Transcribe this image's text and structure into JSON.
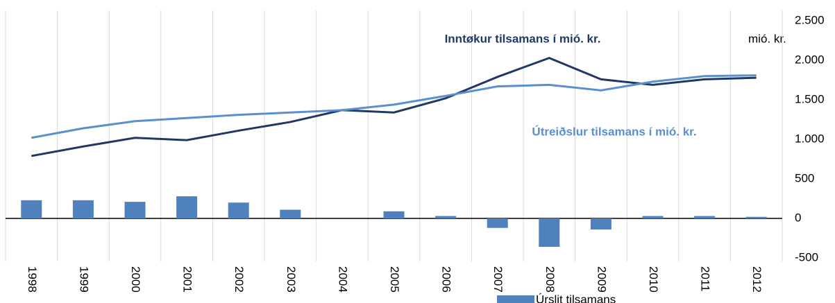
{
  "chart_data": {
    "type": "combo",
    "y_label": "mió. kr.",
    "categories": [
      "1998",
      "1999",
      "2000",
      "2001",
      "2002",
      "2003",
      "2004",
      "2005",
      "2006",
      "2007",
      "2008",
      "2009",
      "2010",
      "2011",
      "2012"
    ],
    "series": [
      {
        "name": "Úrslit tilsamans",
        "type": "bar",
        "color": "#4f81bd",
        "values": [
          230,
          230,
          210,
          280,
          200,
          110,
          0,
          90,
          30,
          -120,
          -360,
          -140,
          30,
          30,
          20
        ]
      },
      {
        "name": "Inntøkur tilsamans í mió. kr.",
        "type": "line",
        "color": "#1f3864",
        "values": [
          790,
          910,
          1020,
          990,
          1110,
          1220,
          1370,
          1340,
          1520,
          1790,
          2030,
          1760,
          1690,
          1760,
          1780
        ]
      },
      {
        "name": "Útreiðslur tilsamans í mió. kr.",
        "type": "line",
        "color": "#5b8fd0",
        "values": [
          1020,
          1140,
          1230,
          1270,
          1310,
          1340,
          1370,
          1440,
          1550,
          1670,
          1690,
          1620,
          1730,
          1800,
          1810
        ]
      }
    ],
    "ylim": [
      -500,
      2500
    ],
    "yticks": [
      -500,
      0,
      500,
      {
        "value": 1000,
        "label": "1.000"
      },
      {
        "value": 1500,
        "label": "1.500"
      },
      {
        "value": 2000,
        "label": "2.000"
      },
      {
        "value": 2500,
        "label": "2.500"
      }
    ],
    "grid": true
  }
}
